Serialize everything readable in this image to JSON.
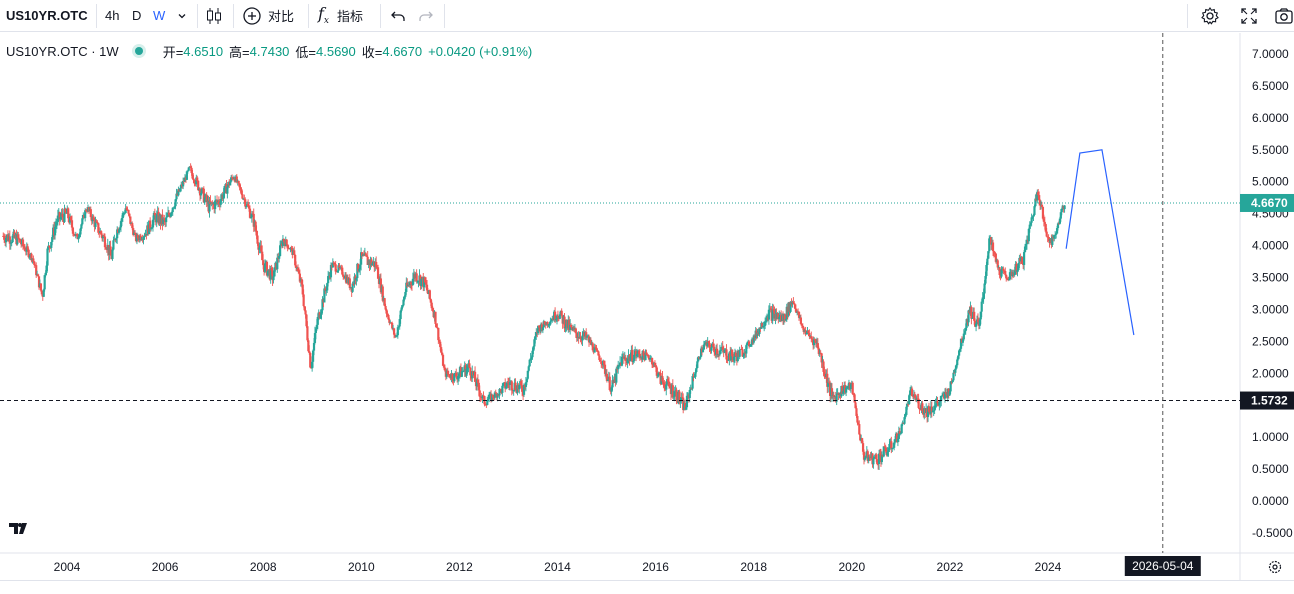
{
  "toolbar": {
    "symbol": "US10YR.OTC",
    "interval_4h": "4h",
    "interval_d": "D",
    "interval_w": "W",
    "compare_label": "对比",
    "indicators_label": "指标"
  },
  "legend": {
    "title": "US10YR.OTC · 1W",
    "open_label": "开=",
    "open_value": "4.6510",
    "high_label": "高=",
    "high_value": "4.7430",
    "low_label": "低=",
    "low_value": "4.5690",
    "close_label": "收=",
    "close_value": "4.6670",
    "change_value": "+0.0420 (+0.91%)"
  },
  "colors": {
    "up": "#26a69a",
    "down": "#ef5350",
    "drawing": "#2962ff",
    "accent": "#2962ff",
    "price_line": "#26a69a"
  },
  "chart_data": {
    "type": "candlestick",
    "interval": "1W",
    "ylim": [
      -0.6,
      7.3
    ],
    "y_ticks": [
      "7.0000",
      "6.5000",
      "6.0000",
      "5.5000",
      "5.0000",
      "4.5000",
      "4.0000",
      "3.5000",
      "3.0000",
      "2.5000",
      "2.0000",
      "1.5000",
      "1.0000",
      "0.5000",
      "0.0000",
      "-0.5000"
    ],
    "x_ticks": [
      "2004",
      "2006",
      "2008",
      "2010",
      "2012",
      "2014",
      "2016",
      "2018",
      "2020",
      "2022",
      "2024"
    ],
    "x_range": [
      2002.7,
      2028.0
    ],
    "price_path": [
      [
        2002.7,
        4.15
      ],
      [
        2003.0,
        4.1
      ],
      [
        2003.3,
        3.8
      ],
      [
        2003.5,
        3.2
      ],
      [
        2003.6,
        3.9
      ],
      [
        2003.8,
        4.4
      ],
      [
        2004.0,
        4.5
      ],
      [
        2004.2,
        4.1
      ],
      [
        2004.4,
        4.6
      ],
      [
        2004.6,
        4.3
      ],
      [
        2004.8,
        4.05
      ],
      [
        2004.9,
        3.8
      ],
      [
        2005.0,
        4.2
      ],
      [
        2005.2,
        4.6
      ],
      [
        2005.4,
        4.1
      ],
      [
        2005.6,
        4.2
      ],
      [
        2005.8,
        4.45
      ],
      [
        2006.0,
        4.35
      ],
      [
        2006.2,
        4.7
      ],
      [
        2006.5,
        5.2
      ],
      [
        2006.7,
        4.9
      ],
      [
        2006.9,
        4.6
      ],
      [
        2007.1,
        4.7
      ],
      [
        2007.4,
        5.1
      ],
      [
        2007.6,
        4.75
      ],
      [
        2007.8,
        4.4
      ],
      [
        2008.0,
        3.7
      ],
      [
        2008.2,
        3.5
      ],
      [
        2008.4,
        4.1
      ],
      [
        2008.6,
        3.9
      ],
      [
        2008.8,
        3.3
      ],
      [
        2008.97,
        2.1
      ],
      [
        2009.1,
        2.8
      ],
      [
        2009.4,
        3.7
      ],
      [
        2009.6,
        3.6
      ],
      [
        2009.8,
        3.35
      ],
      [
        2010.0,
        3.8
      ],
      [
        2010.3,
        3.7
      ],
      [
        2010.5,
        3.0
      ],
      [
        2010.7,
        2.55
      ],
      [
        2010.9,
        3.3
      ],
      [
        2011.1,
        3.55
      ],
      [
        2011.3,
        3.4
      ],
      [
        2011.5,
        2.9
      ],
      [
        2011.7,
        2.0
      ],
      [
        2011.9,
        1.95
      ],
      [
        2012.2,
        2.1
      ],
      [
        2012.5,
        1.55
      ],
      [
        2012.8,
        1.7
      ],
      [
        2013.0,
        1.85
      ],
      [
        2013.3,
        1.75
      ],
      [
        2013.6,
        2.7
      ],
      [
        2013.8,
        2.8
      ],
      [
        2014.0,
        2.95
      ],
      [
        2014.3,
        2.65
      ],
      [
        2014.6,
        2.55
      ],
      [
        2014.9,
        2.2
      ],
      [
        2015.1,
        1.75
      ],
      [
        2015.3,
        2.2
      ],
      [
        2015.6,
        2.3
      ],
      [
        2015.9,
        2.25
      ],
      [
        2016.1,
        1.9
      ],
      [
        2016.4,
        1.7
      ],
      [
        2016.6,
        1.45
      ],
      [
        2016.9,
        2.3
      ],
      [
        2017.0,
        2.45
      ],
      [
        2017.3,
        2.35
      ],
      [
        2017.6,
        2.25
      ],
      [
        2017.8,
        2.35
      ],
      [
        2018.0,
        2.55
      ],
      [
        2018.3,
        2.95
      ],
      [
        2018.6,
        2.85
      ],
      [
        2018.8,
        3.15
      ],
      [
        2019.0,
        2.7
      ],
      [
        2019.3,
        2.45
      ],
      [
        2019.6,
        1.6
      ],
      [
        2019.8,
        1.75
      ],
      [
        2020.0,
        1.8
      ],
      [
        2020.15,
        1.1
      ],
      [
        2020.25,
        0.7
      ],
      [
        2020.5,
        0.65
      ],
      [
        2020.8,
        0.85
      ],
      [
        2021.0,
        1.1
      ],
      [
        2021.2,
        1.7
      ],
      [
        2021.5,
        1.4
      ],
      [
        2021.8,
        1.55
      ],
      [
        2022.0,
        1.75
      ],
      [
        2022.2,
        2.4
      ],
      [
        2022.4,
        3.0
      ],
      [
        2022.6,
        2.7
      ],
      [
        2022.8,
        4.1
      ],
      [
        2023.0,
        3.6
      ],
      [
        2023.2,
        3.5
      ],
      [
        2023.5,
        3.8
      ],
      [
        2023.8,
        4.9
      ],
      [
        2023.95,
        4.2
      ],
      [
        2024.1,
        4.05
      ],
      [
        2024.3,
        4.6
      ],
      [
        2024.35,
        4.667
      ]
    ],
    "price_lines": [
      {
        "value": 4.667,
        "label": "4.6670",
        "style": "dotted",
        "color": "#26a69a"
      },
      {
        "value": 1.5732,
        "label": "1.5732",
        "style": "dashed",
        "color": "#131722"
      }
    ],
    "crosshair": {
      "x_label": "2026-05-04",
      "x_value": 2026.34
    },
    "drawing_path": [
      [
        2024.37,
        3.95
      ],
      [
        2024.65,
        5.45
      ],
      [
        2025.1,
        5.5
      ],
      [
        2025.75,
        2.6
      ]
    ]
  }
}
